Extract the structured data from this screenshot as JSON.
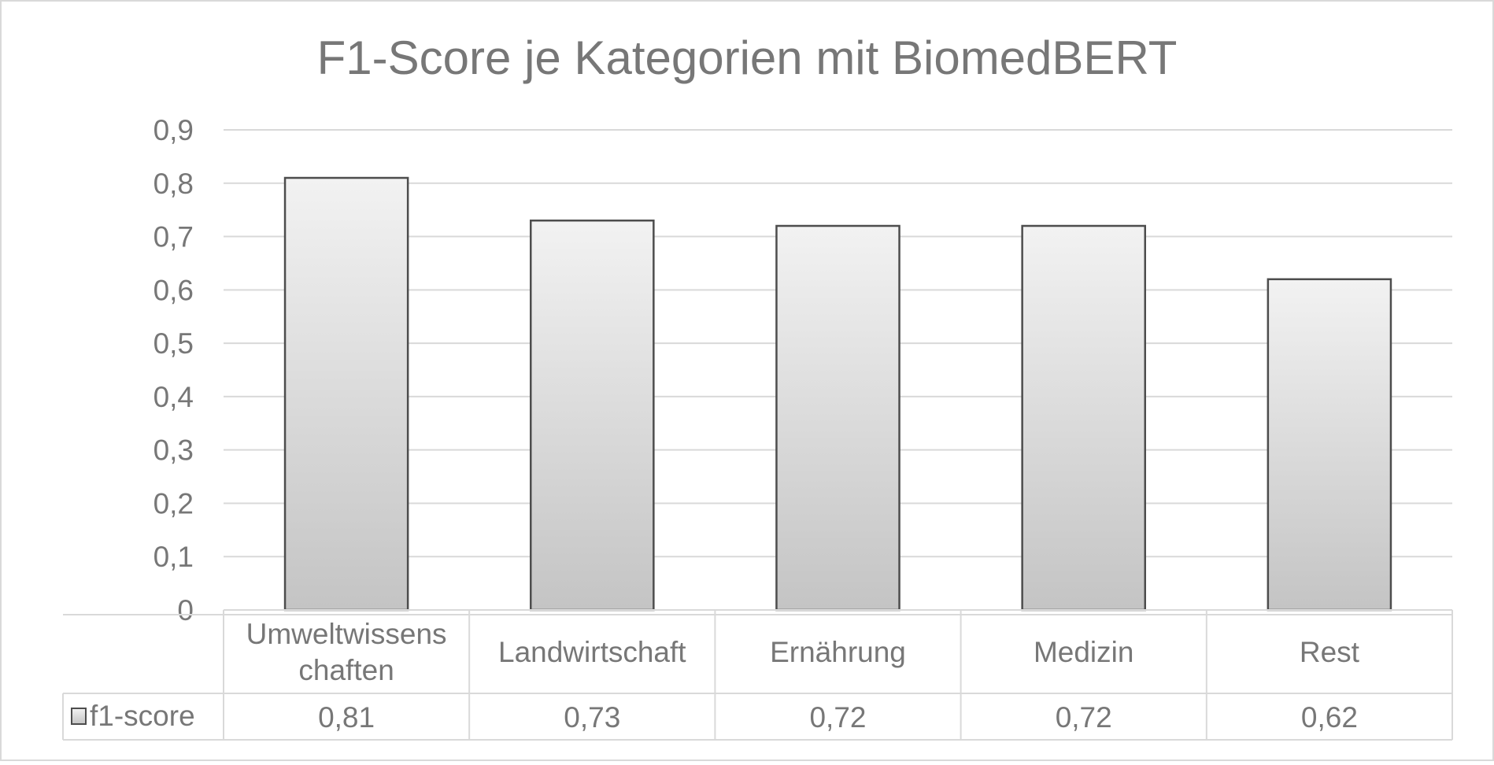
{
  "chart_data": {
    "type": "bar",
    "title": "F1-Score je Kategorien mit BiomedBERT",
    "categories": [
      "Umweltwissens chaften",
      "Landwirtschaft",
      "Ernährung",
      "Medizin",
      "Rest"
    ],
    "category_lines": [
      [
        "Umweltwissens",
        "chaften"
      ],
      [
        "Landwirtschaft"
      ],
      [
        "Ernährung"
      ],
      [
        "Medizin"
      ],
      [
        "Rest"
      ]
    ],
    "series": [
      {
        "name": "f1-score",
        "values": [
          0.81,
          0.73,
          0.72,
          0.72,
          0.62
        ],
        "labels": [
          "0,81",
          "0,73",
          "0,72",
          "0,72",
          "0,62"
        ]
      }
    ],
    "y_ticks": [
      "0",
      "0,1",
      "0,2",
      "0,3",
      "0,4",
      "0,5",
      "0,6",
      "0,7",
      "0,8",
      "0,9"
    ],
    "ylim": [
      0,
      0.9
    ],
    "grid": true,
    "data_table": true,
    "colors": {
      "text": "#777777",
      "grid": "#d9d9d9",
      "bar_top": "#f2f2f2",
      "bar_bottom": "#c4c4c4",
      "bar_stroke": "#4d4d4d"
    }
  }
}
